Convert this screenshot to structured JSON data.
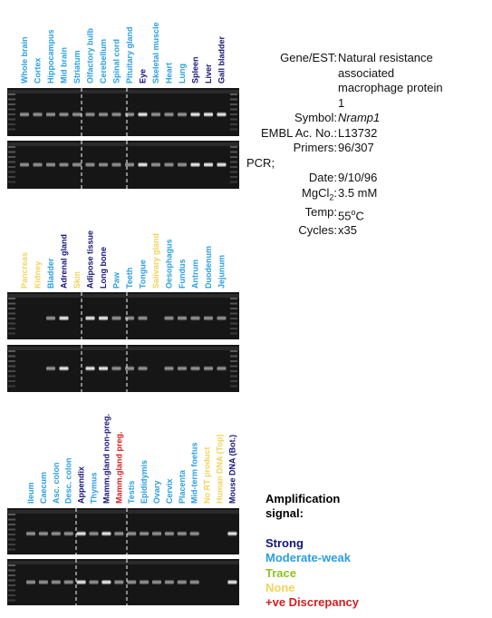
{
  "panels": [
    {
      "lanes": [
        {
          "label": "Whole brain",
          "color": "#2a9fe0"
        },
        {
          "label": "Cortex",
          "color": "#2a9fe0"
        },
        {
          "label": "Hippocampus",
          "color": "#2a9fe0"
        },
        {
          "label": "Mid brain",
          "color": "#2a9fe0"
        },
        {
          "label": "Striatum",
          "color": "#2a9fe0"
        },
        {
          "label": "Olfactory bulb",
          "color": "#2a9fe0"
        },
        {
          "label": "Cerebellum",
          "color": "#2a9fe0"
        },
        {
          "label": "Spinal cord",
          "color": "#2a9fe0"
        },
        {
          "label": "Pituitary gland",
          "color": "#2a9fe0"
        },
        {
          "label": "Eye",
          "color": "#15157a"
        },
        {
          "label": "Skeletal muscle",
          "color": "#2a9fe0"
        },
        {
          "label": "Heart",
          "color": "#2a9fe0"
        },
        {
          "label": "Lung",
          "color": "#2a9fe0"
        },
        {
          "label": "Spleen",
          "color": "#15157a"
        },
        {
          "label": "Liver",
          "color": "#15157a"
        },
        {
          "label": "Gall bladder",
          "color": "#15157a"
        }
      ]
    },
    {
      "lanes": [
        {
          "label": "Pancreas",
          "color": "#f2d35a"
        },
        {
          "label": "Kidney",
          "color": "#f2d35a"
        },
        {
          "label": "Bladder",
          "color": "#2a9fe0"
        },
        {
          "label": "Adrenal gland",
          "color": "#15157a"
        },
        {
          "label": "Skin",
          "color": "#f2d35a"
        },
        {
          "label": "Adipose tissue",
          "color": "#15157a"
        },
        {
          "label": "Long bone",
          "color": "#15157a"
        },
        {
          "label": "Paw",
          "color": "#2a9fe0"
        },
        {
          "label": "Teeth",
          "color": "#2a9fe0"
        },
        {
          "label": "Tongue",
          "color": "#2a9fe0"
        },
        {
          "label": "Salivary gland",
          "color": "#f2d35a"
        },
        {
          "label": "Oesophagus",
          "color": "#2a9fe0"
        },
        {
          "label": "Fundus",
          "color": "#2a9fe0"
        },
        {
          "label": "Antrum",
          "color": "#2a9fe0"
        },
        {
          "label": "Duodenum",
          "color": "#2a9fe0"
        },
        {
          "label": "Jejunum",
          "color": "#2a9fe0"
        }
      ]
    },
    {
      "lanes": [
        {
          "label": "Ileum",
          "color": "#2a9fe0"
        },
        {
          "label": "Caecum",
          "color": "#2a9fe0"
        },
        {
          "label": "Asc. colon",
          "color": "#2a9fe0"
        },
        {
          "label": "Desc. colon",
          "color": "#2a9fe0"
        },
        {
          "label": "Appendix",
          "color": "#15157a"
        },
        {
          "label": "Thymus",
          "color": "#2a9fe0"
        },
        {
          "label": "Mamm.gland non-preg.",
          "color": "#15157a"
        },
        {
          "label": "Mamm.gland preg.",
          "color": "#d42020"
        },
        {
          "label": "Testis",
          "color": "#2a9fe0"
        },
        {
          "label": "Epididymis",
          "color": "#2a9fe0"
        },
        {
          "label": "Ovary",
          "color": "#2a9fe0"
        },
        {
          "label": "Cervix",
          "color": "#2a9fe0"
        },
        {
          "label": "Placenta",
          "color": "#2a9fe0"
        },
        {
          "label": "Mid-term foetus",
          "color": "#2a9fe0"
        },
        {
          "label": "No RT product",
          "color": "#f2d35a"
        },
        {
          "label": "Human DNA (Top)",
          "color": "#f2d35a"
        },
        {
          "label": "Mouse DNA (Bot.)",
          "color": "#15157a"
        }
      ]
    }
  ],
  "info": {
    "gene": {
      "label": "Gene/EST:",
      "value": "Natural resistance associated macrophage protein 1"
    },
    "symbol": {
      "label": "Symbol:",
      "value": "Nramp1"
    },
    "embl": {
      "label": "EMBL Ac. No.:",
      "value": "L13732"
    },
    "primers": {
      "label": "Primers:",
      "value": "96/307"
    },
    "pcr": "PCR;",
    "date": {
      "label": "Date:",
      "value": "9/10/96"
    },
    "mgcl": {
      "label": "MgCl",
      "sub": "2",
      "colon": ":",
      "value": "3.5 mM"
    },
    "temp": {
      "label": "Temp:",
      "value": "55",
      "sup": "o",
      "unit": "C"
    },
    "cycles": {
      "label": "Cycles:",
      "value": "x35"
    }
  },
  "legend": {
    "title": "Amplification signal:",
    "items": [
      {
        "label": "Strong",
        "color": "#15157a"
      },
      {
        "label": "Moderate-weak",
        "color": "#2a9fe0"
      },
      {
        "label": "Trace",
        "color": "#8cc320"
      },
      {
        "label": "None",
        "color": "#f2d35a"
      },
      {
        "label": "+ve Discrepancy",
        "color": "#d42020"
      }
    ]
  }
}
